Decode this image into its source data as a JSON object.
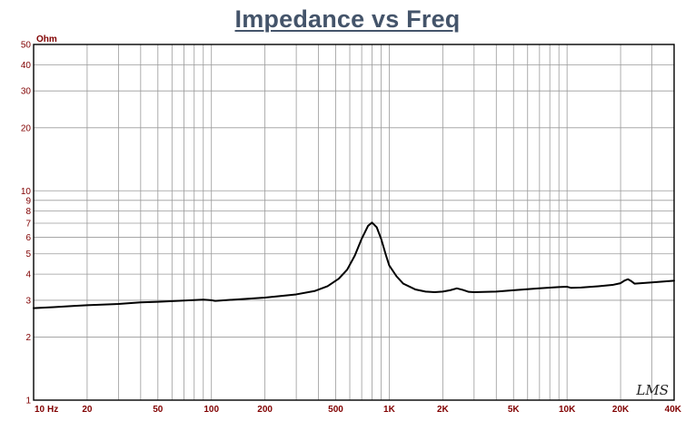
{
  "chart_data": {
    "type": "line",
    "title": "Impedance vs Freq",
    "y_unit": "Ohm",
    "x_unit": "Hz",
    "x_scale": "log",
    "y_scale": "log",
    "xlim": [
      10,
      40000
    ],
    "ylim": [
      1,
      50
    ],
    "grid": true,
    "x_ticks": [
      {
        "value": 10,
        "label": "10"
      },
      {
        "value": 20,
        "label": "20"
      },
      {
        "value": 50,
        "label": "50"
      },
      {
        "value": 100,
        "label": "100"
      },
      {
        "value": 200,
        "label": "200"
      },
      {
        "value": 500,
        "label": "500"
      },
      {
        "value": 1000,
        "label": "1K"
      },
      {
        "value": 2000,
        "label": "2K"
      },
      {
        "value": 5000,
        "label": "5K"
      },
      {
        "value": 10000,
        "label": "10K"
      },
      {
        "value": 20000,
        "label": "20K"
      },
      {
        "value": 40000,
        "label": "40K"
      }
    ],
    "y_ticks": [
      {
        "value": 1,
        "label": "1"
      },
      {
        "value": 2,
        "label": "2"
      },
      {
        "value": 3,
        "label": "3"
      },
      {
        "value": 4,
        "label": "4"
      },
      {
        "value": 5,
        "label": "5"
      },
      {
        "value": 6,
        "label": "6"
      },
      {
        "value": 7,
        "label": "7"
      },
      {
        "value": 8,
        "label": "8"
      },
      {
        "value": 9,
        "label": "9"
      },
      {
        "value": 10,
        "label": "10"
      },
      {
        "value": 20,
        "label": "20"
      },
      {
        "value": 30,
        "label": "30"
      },
      {
        "value": 40,
        "label": "40"
      },
      {
        "value": 50,
        "label": "50"
      }
    ],
    "series": [
      {
        "color": "#000000",
        "points": [
          [
            10,
            2.75
          ],
          [
            13,
            2.78
          ],
          [
            17,
            2.82
          ],
          [
            20,
            2.84
          ],
          [
            30,
            2.88
          ],
          [
            40,
            2.93
          ],
          [
            50,
            2.95
          ],
          [
            70,
            2.99
          ],
          [
            90,
            3.02
          ],
          [
            100,
            3.0
          ],
          [
            105,
            2.98
          ],
          [
            150,
            3.04
          ],
          [
            200,
            3.09
          ],
          [
            300,
            3.2
          ],
          [
            380,
            3.32
          ],
          [
            450,
            3.5
          ],
          [
            520,
            3.8
          ],
          [
            580,
            4.2
          ],
          [
            640,
            4.9
          ],
          [
            700,
            5.9
          ],
          [
            760,
            6.8
          ],
          [
            800,
            7.05
          ],
          [
            850,
            6.7
          ],
          [
            900,
            5.9
          ],
          [
            960,
            4.9
          ],
          [
            1000,
            4.4
          ],
          [
            1100,
            3.9
          ],
          [
            1200,
            3.6
          ],
          [
            1400,
            3.38
          ],
          [
            1600,
            3.3
          ],
          [
            1800,
            3.28
          ],
          [
            2000,
            3.3
          ],
          [
            2200,
            3.35
          ],
          [
            2400,
            3.42
          ],
          [
            2600,
            3.36
          ],
          [
            2800,
            3.29
          ],
          [
            3000,
            3.28
          ],
          [
            4000,
            3.3
          ],
          [
            5000,
            3.35
          ],
          [
            7000,
            3.42
          ],
          [
            9000,
            3.47
          ],
          [
            10000,
            3.48
          ],
          [
            10500,
            3.44
          ],
          [
            12000,
            3.45
          ],
          [
            15000,
            3.5
          ],
          [
            18000,
            3.55
          ],
          [
            20000,
            3.62
          ],
          [
            21000,
            3.72
          ],
          [
            22000,
            3.78
          ],
          [
            23000,
            3.7
          ],
          [
            24000,
            3.6
          ],
          [
            30000,
            3.65
          ],
          [
            40000,
            3.72
          ]
        ]
      }
    ]
  },
  "watermark": "LMS"
}
